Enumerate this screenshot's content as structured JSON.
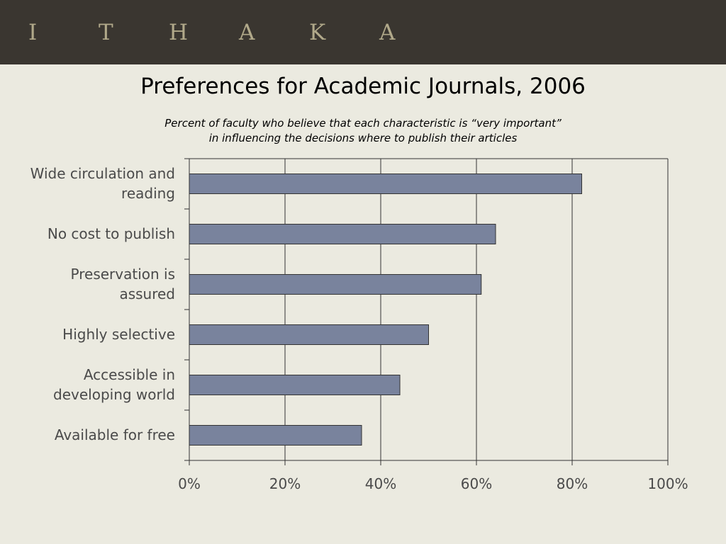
{
  "header": {
    "logo_letters": [
      "I",
      "T",
      "H",
      "A",
      "K",
      "A"
    ],
    "background_color": "#3a3630",
    "logo_color": "#b1a98a"
  },
  "colors": {
    "slide_background": "#ebeae0",
    "bar_fill": "#79839d",
    "bar_stroke": "#333333",
    "gridline": "#333333"
  },
  "chart_data": {
    "type": "bar",
    "orientation": "horizontal",
    "title": "Preferences for Academic Journals, 2006",
    "subtitle_lines": [
      "Percent of faculty who believe that each characteristic is “very important”",
      "in influencing the decisions where to publish their articles"
    ],
    "categories": [
      "Wide circulation and reading",
      "No cost to publish",
      "Preservation is assured",
      "Highly selective",
      "Accessible in developing world",
      "Available for free"
    ],
    "category_label_lines": [
      [
        "Wide circulation and",
        "reading"
      ],
      [
        "No cost to publish"
      ],
      [
        "Preservation is",
        "assured"
      ],
      [
        "Highly selective"
      ],
      [
        "Accessible in",
        "developing world"
      ],
      [
        "Available for free"
      ]
    ],
    "values": [
      82,
      64,
      61,
      50,
      44,
      36
    ],
    "xlim": [
      0,
      100
    ],
    "xticks": [
      0,
      20,
      40,
      60,
      80,
      100
    ],
    "xtick_labels": [
      "0%",
      "20%",
      "40%",
      "60%",
      "80%",
      "100%"
    ],
    "xlabel": "",
    "ylabel": "",
    "grid": "vertical",
    "legend": "none"
  }
}
